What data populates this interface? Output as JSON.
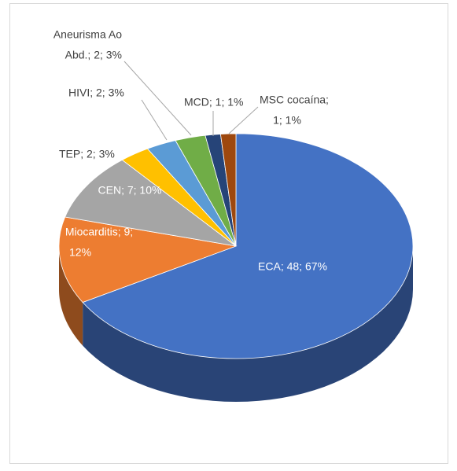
{
  "chart_data": {
    "type": "pie3d",
    "values": [
      48,
      9,
      7,
      2,
      2,
      2,
      1,
      1
    ],
    "value_labels": [
      [
        "ECA; 48; 67%"
      ],
      [
        "Miocarditis; 9;",
        "12%"
      ],
      [
        "CEN; 7; 10%"
      ],
      [
        "TEP; 2; 3%"
      ],
      [
        "HIVI; 2; 3%"
      ],
      [
        "Aneurisma Ao",
        "Abd.; 2; 3%"
      ],
      [
        "MCD; 1; 1%"
      ],
      [
        "MSC cocaína;",
        "1; 1%"
      ]
    ],
    "colors": [
      "#4472c4",
      "#ed7d31",
      "#a5a5a5",
      "#ffc000",
      "#5b9bd5",
      "#70ad47",
      "#264478",
      "#9e480e"
    ]
  }
}
